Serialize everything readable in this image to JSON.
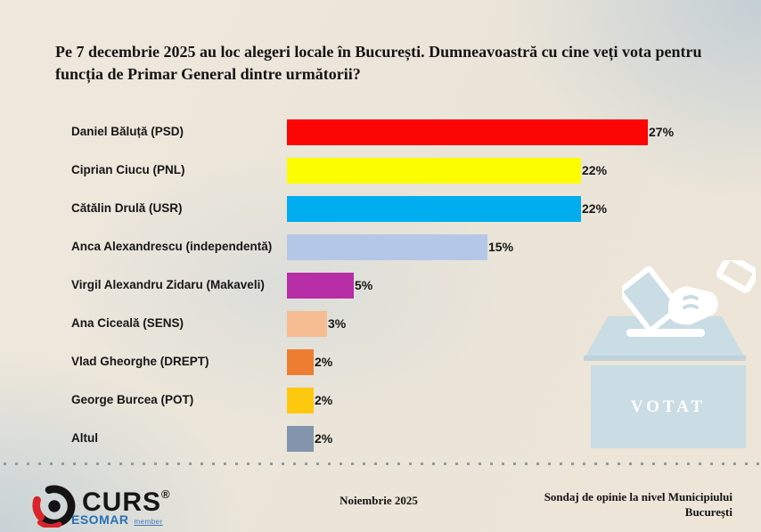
{
  "title": "Pe 7 decembrie 2025 au loc alegeri locale în București. Dumneavoastră cu cine veți vota pentru funcția de Primar General dintre următorii?",
  "chart_data": {
    "type": "bar",
    "orientation": "horizontal",
    "unit": "percent",
    "categories": [
      "Daniel Băluță (PSD)",
      "Ciprian Ciucu (PNL)",
      "Cătălin Drulă (USR)",
      "Anca Alexandrescu (independentă)",
      "Virgil Alexandru Zidaru (Makaveli)",
      "Ana Ciceală (SENS)",
      "Vlad Gheorghe (DREPT)",
      "George Burcea (POT)",
      "Altul"
    ],
    "values": [
      27,
      22,
      22,
      15,
      5,
      3,
      2,
      2,
      2
    ],
    "value_labels": [
      "27%",
      "22%",
      "22%",
      "15%",
      "5%",
      "3%",
      "2%",
      "2%",
      "2%"
    ],
    "bar_colors": [
      "#fb0505",
      "#fdfd02",
      "#00aeef",
      "#b4c7e7",
      "#b62da5",
      "#f6bc92",
      "#ed7d31",
      "#fec90f",
      "#8295ac"
    ],
    "xlim": [
      0,
      28
    ],
    "grid": false,
    "legend": false,
    "title": "Pe 7 decembrie 2025 au loc alegeri locale în București. Dumneavoastră cu cine veți vota pentru funcția de Primar General dintre următorii?"
  },
  "ballot_graphic": {
    "label": "VOTAT",
    "box_color": "#cadce4",
    "icon": "hand-casting-ballot-icon"
  },
  "footer": {
    "logo": {
      "brand": "CURS",
      "registered_mark": "®",
      "esomar": "ESOMAR",
      "esomar_suffix": "member",
      "brand_red": "#d8252b",
      "esomar_blue": "#2a70b8"
    },
    "date": "Noiembrie 2025",
    "note_lines": [
      "Sondaj de opinie la nivel Municipiului",
      "București"
    ]
  }
}
